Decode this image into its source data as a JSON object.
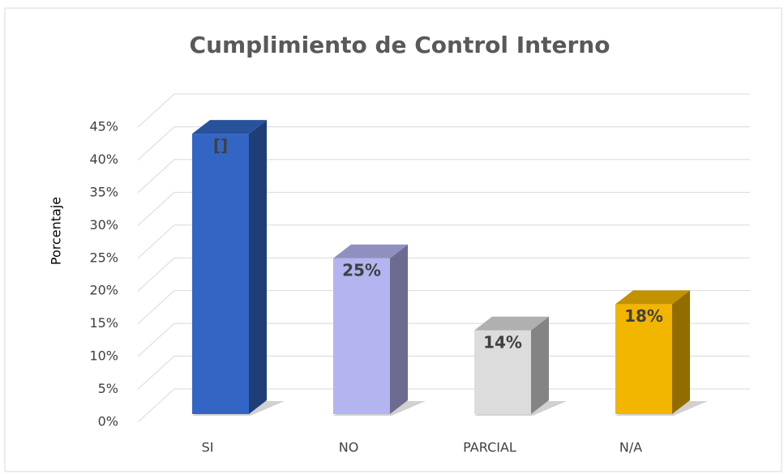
{
  "chart_data": {
    "type": "bar3d",
    "title": "Cumplimiento de Control Interno",
    "y_label": "Porcentaje",
    "categories": [
      "SI",
      "NO",
      "PARCIAL",
      "N/A"
    ],
    "values": [
      44,
      25,
      14,
      18
    ],
    "value_labels": [
      "[]",
      "25%",
      "14%",
      "18%"
    ],
    "colors": [
      "#3366c4",
      "#b4b4f0",
      "#dcdcdc",
      "#f2b600"
    ],
    "ylim": [
      0,
      45
    ],
    "yticks": [
      {
        "value": 0,
        "label": "0%"
      },
      {
        "value": 5,
        "label": "5%"
      },
      {
        "value": 10,
        "label": "10%"
      },
      {
        "value": 15,
        "label": "15%"
      },
      {
        "value": 20,
        "label": "20%"
      },
      {
        "value": 25,
        "label": "25%"
      },
      {
        "value": 30,
        "label": "30%"
      },
      {
        "value": 35,
        "label": "35%"
      },
      {
        "value": 40,
        "label": "40%"
      },
      {
        "value": 45,
        "label": "45%"
      }
    ],
    "grid": true
  }
}
